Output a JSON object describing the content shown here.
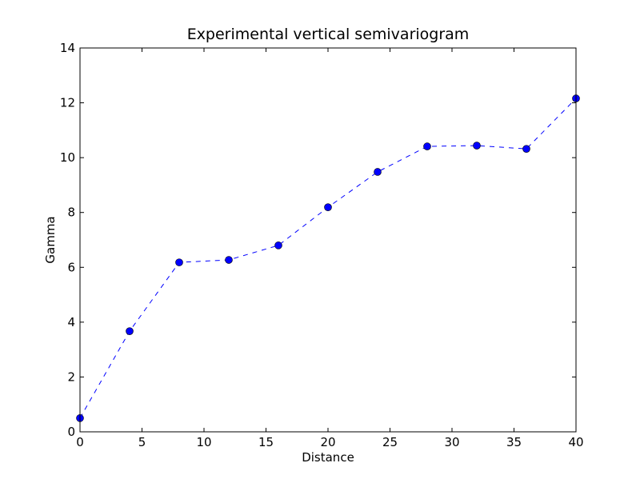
{
  "chart_data": {
    "type": "line",
    "title": "Experimental vertical semivariogram",
    "xlabel": "Distance",
    "ylabel": "Gamma",
    "xlim": [
      0,
      40
    ],
    "ylim": [
      0,
      14
    ],
    "xticks": [
      0,
      5,
      10,
      15,
      20,
      25,
      30,
      35,
      40
    ],
    "yticks": [
      0,
      2,
      4,
      6,
      8,
      10,
      12,
      14
    ],
    "grid": false,
    "series": [
      {
        "name": "gamma",
        "color": "#0000ff",
        "linestyle": "dashed",
        "marker": "circle",
        "x": [
          0,
          4,
          8,
          12,
          16,
          20,
          24,
          28,
          32,
          36,
          40
        ],
        "y": [
          0.5,
          3.67,
          6.18,
          6.27,
          6.8,
          8.19,
          9.48,
          10.41,
          10.44,
          10.32,
          12.16
        ]
      }
    ]
  }
}
